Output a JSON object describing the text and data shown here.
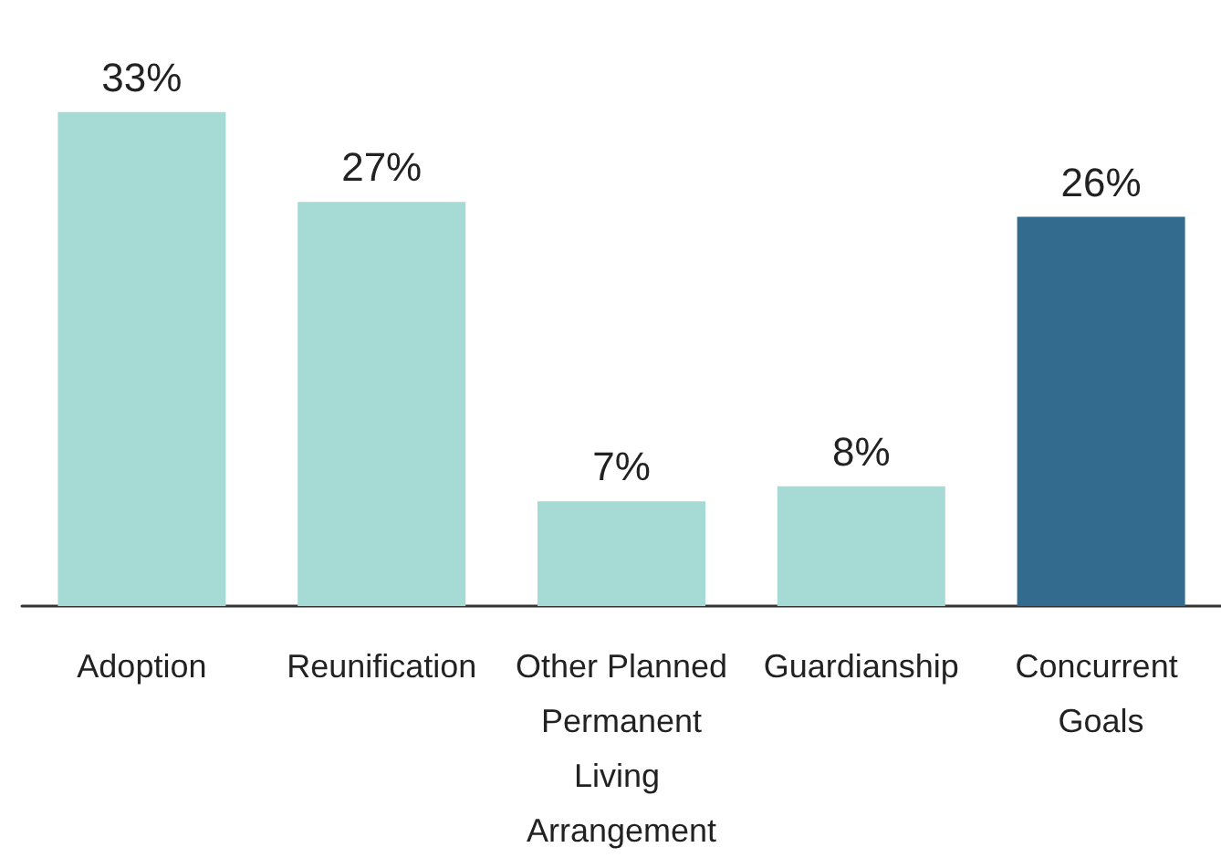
{
  "chart_data": {
    "type": "bar",
    "categories": [
      "Adoption",
      "Reunification",
      "Other Planned Permanent Living Arrangement",
      "Guardianship",
      "Concurrent Goals"
    ],
    "values": [
      33,
      27,
      7,
      8,
      26
    ],
    "value_labels": [
      "33%",
      "27%",
      "7%",
      "8%",
      "26%"
    ],
    "colors": [
      "#a6dbd5",
      "#a6dbd5",
      "#a6dbd5",
      "#a6dbd5",
      "#336b8f"
    ]
  }
}
